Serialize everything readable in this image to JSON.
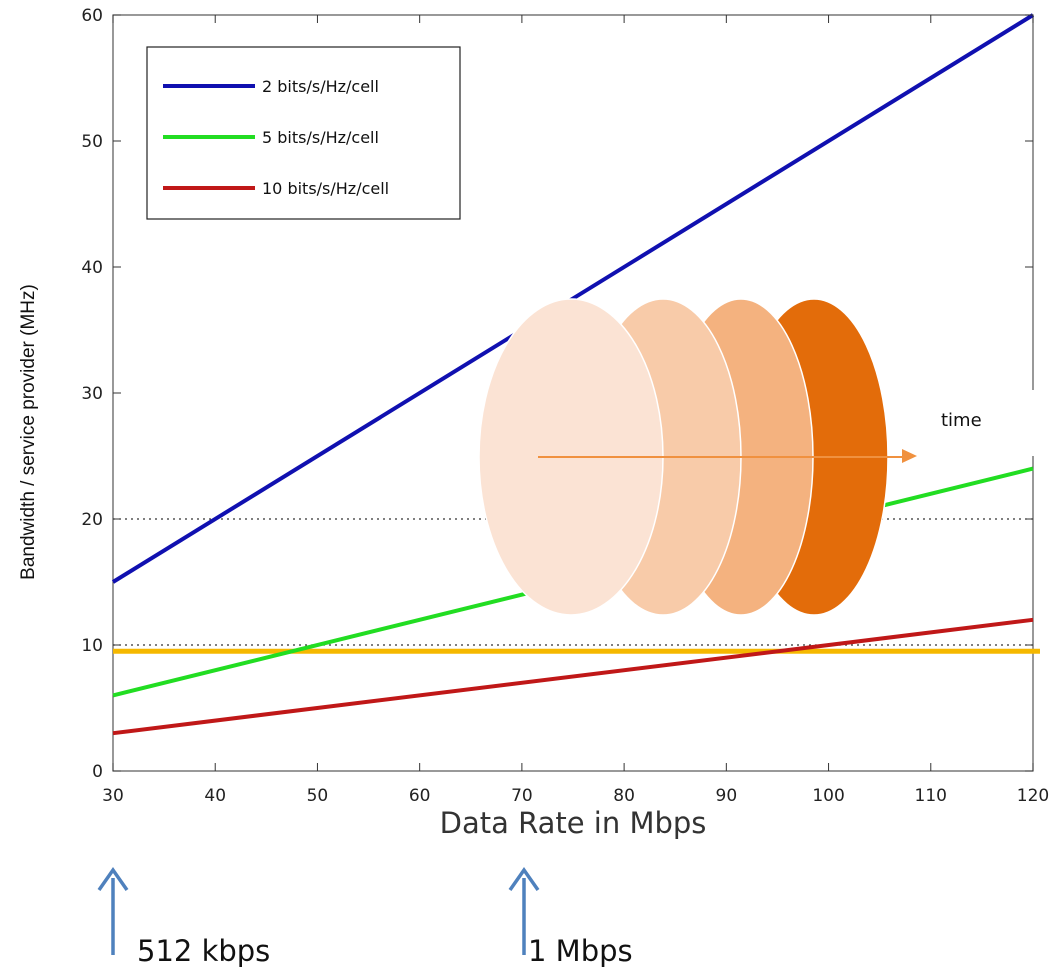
{
  "chart_data": {
    "type": "line",
    "xlabel": "Data Rate in Mbps",
    "ylabel": "Bandwidth / service provider (MHz)",
    "xlim": [
      30,
      120
    ],
    "ylim": [
      0,
      60
    ],
    "xticks": [
      30,
      40,
      50,
      60,
      70,
      80,
      90,
      100,
      110,
      120
    ],
    "yticks": [
      0,
      10,
      20,
      30,
      40,
      50,
      60
    ],
    "legend_position": "top-left",
    "grid": "dotted horizontal lines at 10 and 20",
    "series": [
      {
        "name": "2 bits/s/Hz/cell",
        "color": "#1010b0",
        "x": [
          30,
          120
        ],
        "y": [
          15,
          60
        ]
      },
      {
        "name": "5 bits/s/Hz/cell",
        "color": "#22dd22",
        "x": [
          30,
          120
        ],
        "y": [
          6,
          24
        ]
      },
      {
        "name": "10 bits/s/Hz/cell",
        "color": "#c01818",
        "x": [
          30,
          120
        ],
        "y": [
          3,
          12
        ]
      }
    ],
    "reference_lines": [
      {
        "y": 9.5,
        "color": "#f5b800"
      }
    ]
  },
  "overlay": {
    "time_label": "time",
    "disc_colors": [
      "#fbe3d4",
      "#f8cba9",
      "#f4b27f",
      "#e36c0a"
    ]
  },
  "annotations": {
    "left_label": "512 kbps",
    "right_label": "1 Mbps",
    "arrow_color": "#4f81bd"
  }
}
